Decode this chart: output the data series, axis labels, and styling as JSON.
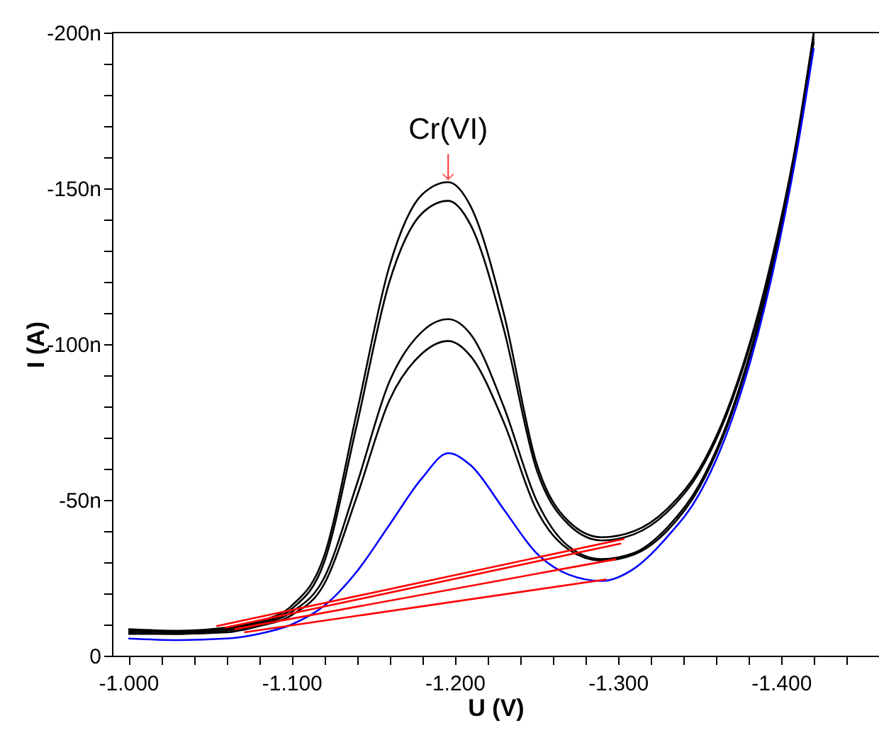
{
  "chart_data": {
    "type": "line",
    "xlabel": "U (V)",
    "ylabel": "I (A)",
    "x": [
      -1.0,
      -1.03,
      -1.06,
      -1.08,
      -1.1,
      -1.12,
      -1.14,
      -1.16,
      -1.18,
      -1.196,
      -1.21,
      -1.23,
      -1.25,
      -1.27,
      -1.29,
      -1.31,
      -1.33,
      -1.35,
      -1.37,
      -1.39,
      -1.41,
      -1.42
    ],
    "series": [
      {
        "color": "#000000",
        "values": [
          -8.5,
          -8,
          -9,
          -11,
          -16,
          -32,
          -78,
          -125,
          -148,
          -152,
          -144,
          -110,
          -62,
          -43,
          -38,
          -40,
          -47,
          -60,
          -83,
          -118,
          -167,
          -200
        ]
      },
      {
        "color": "#000000",
        "values": [
          -8,
          -7.5,
          -8.5,
          -10.5,
          -15,
          -30,
          -74,
          -120,
          -142,
          -146,
          -138,
          -105,
          -60,
          -42,
          -37,
          -39,
          -46,
          -59,
          -82,
          -117,
          -166,
          -199
        ]
      },
      {
        "color": "#000000",
        "values": [
          -7.5,
          -7,
          -8,
          -10,
          -14,
          -25,
          -55,
          -88,
          -104,
          -108,
          -103,
          -80,
          -50,
          -35,
          -31,
          -33,
          -41,
          -55,
          -79,
          -115,
          -165,
          -198
        ]
      },
      {
        "color": "#000000",
        "values": [
          -7,
          -7,
          -7.5,
          -9.5,
          -13,
          -23,
          -51,
          -82,
          -97,
          -101,
          -96,
          -75,
          -47,
          -34,
          -30.5,
          -32.5,
          -40,
          -54,
          -78,
          -114,
          -164,
          -197
        ]
      },
      {
        "color": "#0000ff",
        "values": [
          -5.5,
          -5,
          -5.5,
          -7,
          -10,
          -16,
          -27,
          -42,
          -57,
          -65,
          -61,
          -47,
          -33,
          -26,
          -24,
          -28,
          -38,
          -52,
          -76,
          -112,
          -163,
          -195
        ]
      },
      {
        "type": "line",
        "color": "#ff0000",
        "x": [
          -1.054,
          -1.304
        ],
        "values": [
          -9.5,
          -37.5
        ]
      },
      {
        "type": "line",
        "color": "#ff0000",
        "x": [
          -1.059,
          -1.302
        ],
        "values": [
          -9,
          -36
        ]
      },
      {
        "type": "line",
        "color": "#ff0000",
        "x": [
          -1.065,
          -1.299
        ],
        "values": [
          -8.5,
          -31
        ]
      },
      {
        "type": "line",
        "color": "#ff0000",
        "x": [
          -1.071,
          -1.293
        ],
        "values": [
          -7.5,
          -24.5
        ]
      }
    ],
    "annotations": [
      {
        "text": "Cr(VI)",
        "x": -1.196,
        "y": -152
      }
    ],
    "xlim": [
      -0.99,
      -1.46
    ],
    "ylim": [
      0,
      -200
    ],
    "xticks": [
      {
        "value": -1.0,
        "label": "-1.000"
      },
      {
        "value": -1.02,
        "label": null
      },
      {
        "value": -1.04,
        "label": null
      },
      {
        "value": -1.06,
        "label": null
      },
      {
        "value": -1.08,
        "label": null
      },
      {
        "value": -1.1,
        "label": "-1.100"
      },
      {
        "value": -1.12,
        "label": null
      },
      {
        "value": -1.14,
        "label": null
      },
      {
        "value": -1.16,
        "label": null
      },
      {
        "value": -1.18,
        "label": null
      },
      {
        "value": -1.2,
        "label": "-1.200"
      },
      {
        "value": -1.22,
        "label": null
      },
      {
        "value": -1.24,
        "label": null
      },
      {
        "value": -1.26,
        "label": null
      },
      {
        "value": -1.28,
        "label": null
      },
      {
        "value": -1.3,
        "label": "-1.300"
      },
      {
        "value": -1.32,
        "label": null
      },
      {
        "value": -1.34,
        "label": null
      },
      {
        "value": -1.36,
        "label": null
      },
      {
        "value": -1.38,
        "label": null
      },
      {
        "value": -1.4,
        "label": "-1.400"
      },
      {
        "value": -1.42,
        "label": null
      },
      {
        "value": -1.44,
        "label": null
      }
    ],
    "yticks": [
      0,
      {
        "value": -10,
        "label": null
      },
      {
        "value": -20,
        "label": null
      },
      {
        "value": -30,
        "label": null
      },
      {
        "value": -40,
        "label": null
      },
      {
        "value": -50,
        "label": "-50n"
      },
      {
        "value": -60,
        "label": null
      },
      {
        "value": -70,
        "label": null
      },
      {
        "value": -80,
        "label": null
      },
      {
        "value": -90,
        "label": null
      },
      {
        "value": -100,
        "label": "-100n"
      },
      {
        "value": -110,
        "label": null
      },
      {
        "value": -120,
        "label": null
      },
      {
        "value": -130,
        "label": null
      },
      {
        "value": -140,
        "label": null
      },
      {
        "value": -150,
        "label": "-150n"
      },
      {
        "value": -160,
        "label": null
      },
      {
        "value": -170,
        "label": null
      },
      {
        "value": -180,
        "label": null
      },
      {
        "value": -190,
        "label": null
      },
      {
        "value": -200,
        "label": "-200n"
      }
    ],
    "grid": false,
    "marker": "none",
    "line_style": "solid"
  }
}
